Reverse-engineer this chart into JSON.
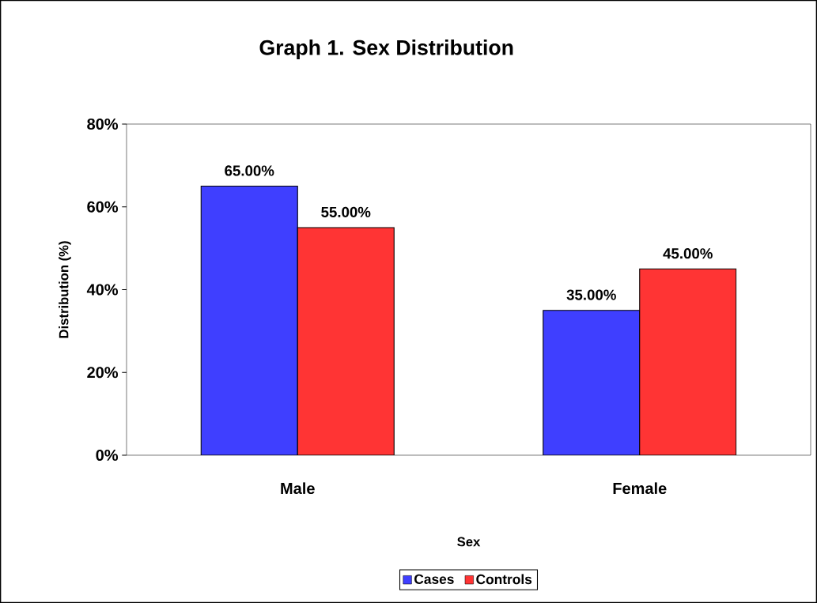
{
  "chart_data": {
    "type": "bar",
    "title": "Graph 1. Sex Distribution",
    "xlabel": "Sex",
    "ylabel": "Distribution (%)",
    "categories": [
      "Male",
      "Female"
    ],
    "series": [
      {
        "name": "Cases",
        "color": "#3f3fff",
        "values": [
          65,
          35
        ],
        "value_labels": [
          "65.00%",
          "35.00%"
        ]
      },
      {
        "name": "Controls",
        "color": "#ff3434",
        "values": [
          55,
          45
        ],
        "value_labels": [
          "55.00%",
          "45.00%"
        ]
      }
    ],
    "ylim": [
      0,
      80
    ],
    "yticks": [
      {
        "value": 0,
        "label": "0%"
      },
      {
        "value": 20,
        "label": "20%"
      },
      {
        "value": 40,
        "label": "40%"
      },
      {
        "value": 60,
        "label": "60%"
      },
      {
        "value": 80,
        "label": "80%"
      }
    ],
    "grid": false,
    "legend": "bottom"
  }
}
